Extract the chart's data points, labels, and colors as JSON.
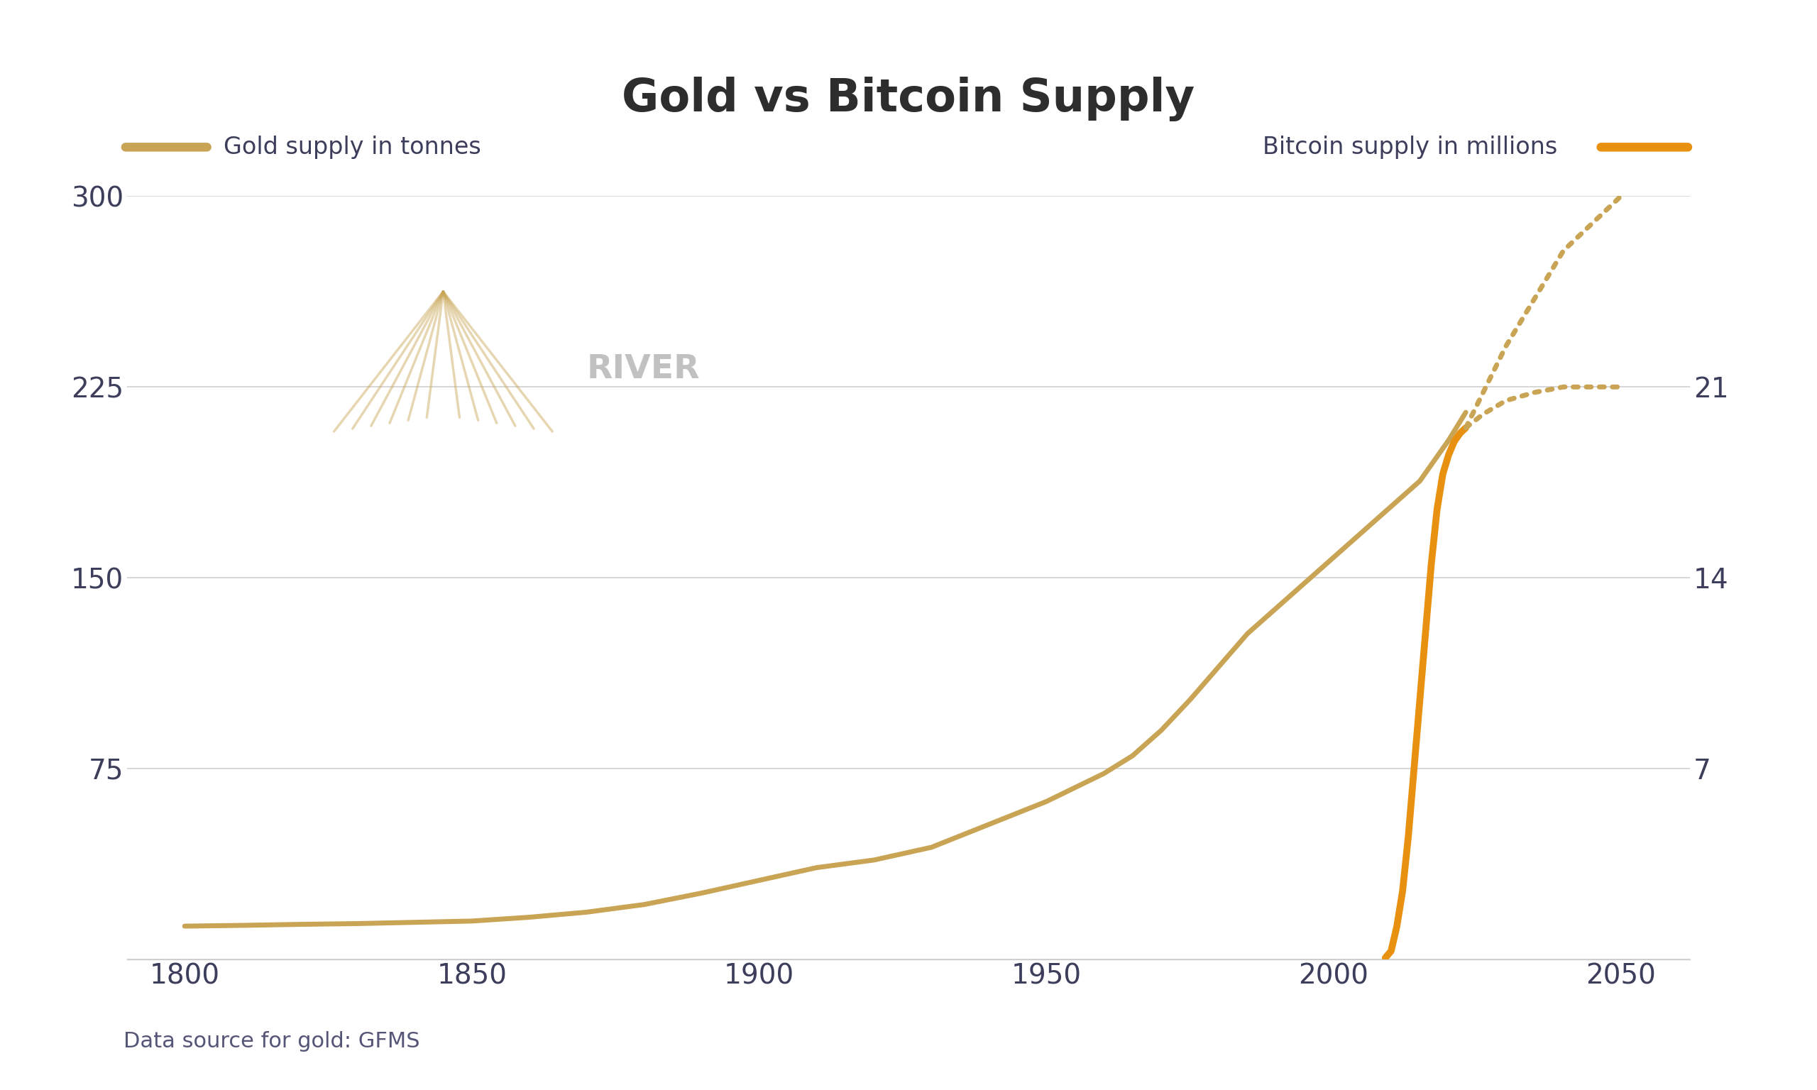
{
  "title": "Gold vs Bitcoin Supply",
  "title_fontsize": 46,
  "title_color": "#2d2d2d",
  "bg_color": "#ffffff",
  "legend_gold_label": "Gold supply in tonnes",
  "legend_btc_label": "Bitcoin supply in millions",
  "gold_color": "#C8A454",
  "btc_color": "#E89010",
  "btc_dotted_color": "#C8A454",
  "btc_dotted2_color": "#C8A454",
  "data_source": "Data source for gold: GFMS",
  "data_source_color": "#555577",
  "data_source_fontsize": 22,
  "tick_fontsize": 28,
  "tick_color": "#3d3d5c",
  "ylim_left": [
    0,
    300
  ],
  "ylim_right": [
    0,
    28
  ],
  "yticks_left": [
    0,
    75,
    150,
    225,
    300
  ],
  "yticks_right": [
    0,
    7,
    14,
    21,
    28
  ],
  "ytick_labels_left": [
    "",
    "75",
    "150",
    "225",
    "300"
  ],
  "ytick_labels_right": [
    "",
    "7",
    "14",
    "21",
    ""
  ],
  "xticks": [
    1800,
    1850,
    1900,
    1950,
    2000,
    2050
  ],
  "xlim": [
    1790,
    2062
  ],
  "grid_color": "#d0d0d0",
  "gold_years": [
    1800,
    1810,
    1820,
    1830,
    1840,
    1850,
    1860,
    1870,
    1880,
    1890,
    1900,
    1910,
    1920,
    1930,
    1940,
    1950,
    1960,
    1965,
    1970,
    1975,
    1980,
    1985,
    1990,
    1995,
    2000,
    2005,
    2010,
    2015,
    2020,
    2023
  ],
  "gold_values": [
    13,
    13.3,
    13.7,
    14.0,
    14.5,
    15.0,
    16.5,
    18.5,
    21.5,
    26,
    31,
    36,
    39,
    44,
    53,
    62,
    73,
    80,
    90,
    102,
    115,
    128,
    138,
    148,
    158,
    168,
    178,
    188,
    204,
    215
  ],
  "btc_years": [
    2009,
    2010,
    2011,
    2012,
    2013,
    2014,
    2015,
    2016,
    2017,
    2018,
    2019,
    2020,
    2021,
    2022,
    2023
  ],
  "btc_values": [
    0.05,
    0.3,
    1.2,
    2.5,
    4.5,
    7.0,
    9.5,
    12.0,
    14.5,
    16.5,
    17.8,
    18.5,
    19.0,
    19.3,
    19.5
  ],
  "btc_future_flat_years": [
    2023,
    2026,
    2030,
    2035,
    2040,
    2050
  ],
  "btc_future_flat_values": [
    19.5,
    20.0,
    20.5,
    20.8,
    21.0,
    21.0
  ],
  "btc_future_up_years": [
    2023,
    2030,
    2040,
    2050
  ],
  "btc_future_up_values": [
    19.5,
    22.5,
    26.0,
    28.0
  ],
  "river_logo_color": "#C8A454",
  "river_text_color": "#999999"
}
